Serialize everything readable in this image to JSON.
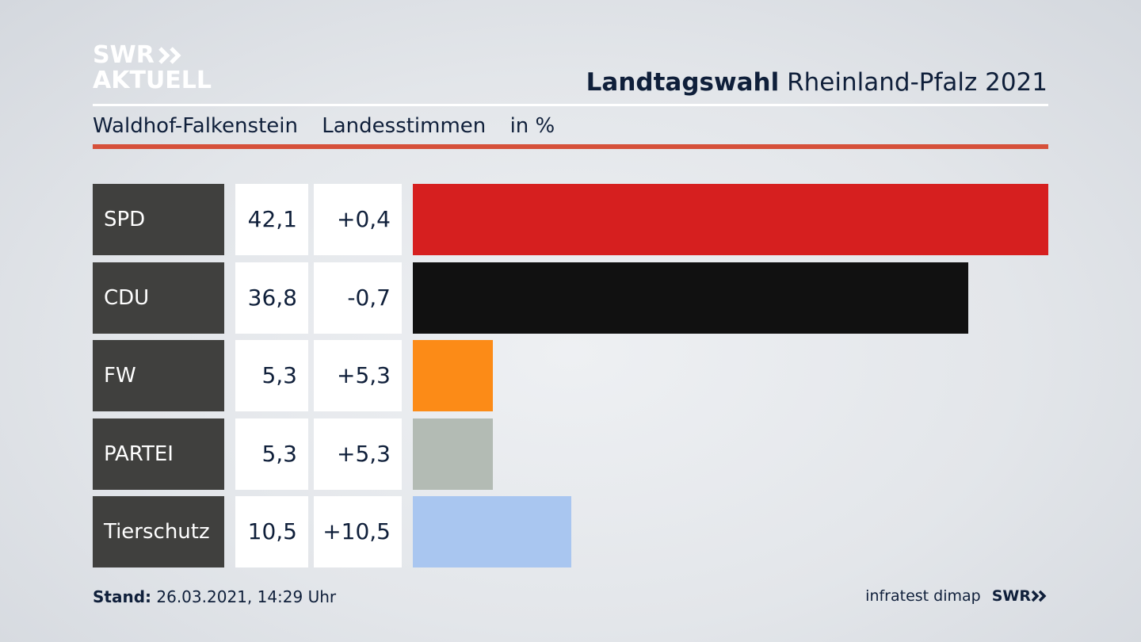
{
  "logo": {
    "line1": "SWR",
    "line2": "AKTUELL"
  },
  "header": {
    "title_bold": "Landtagswahl",
    "title_rest": "Rheinland-Pfalz 2021"
  },
  "subheader": {
    "district": "Waldhof-Falkenstein",
    "vote_type": "Landesstimmen",
    "unit": "in %"
  },
  "chart_data": {
    "type": "bar",
    "orientation": "horizontal",
    "categories": [
      "SPD",
      "CDU",
      "FW",
      "PARTEI",
      "Tierschutz"
    ],
    "values": [
      42.1,
      36.8,
      5.3,
      5.3,
      10.5
    ],
    "value_labels": [
      "42,1",
      "36,8",
      "5,3",
      "5,3",
      "10,5"
    ],
    "diff_labels": [
      "+0,4",
      "-0,7",
      "+5,3",
      "+5,3",
      "+10,5"
    ],
    "colors": [
      "#d61f1f",
      "#111111",
      "#fc8b17",
      "#b3bbb4",
      "#a9c6f0"
    ],
    "xlim": [
      0,
      42.1
    ],
    "title": "Landtagswahl Rheinland-Pfalz 2021",
    "xlabel": "",
    "ylabel": ""
  },
  "footer": {
    "stand_label": "Stand:",
    "stand_value": "26.03.2021, 14:29 Uhr",
    "source": "infratest dimap",
    "brand": "SWR"
  }
}
